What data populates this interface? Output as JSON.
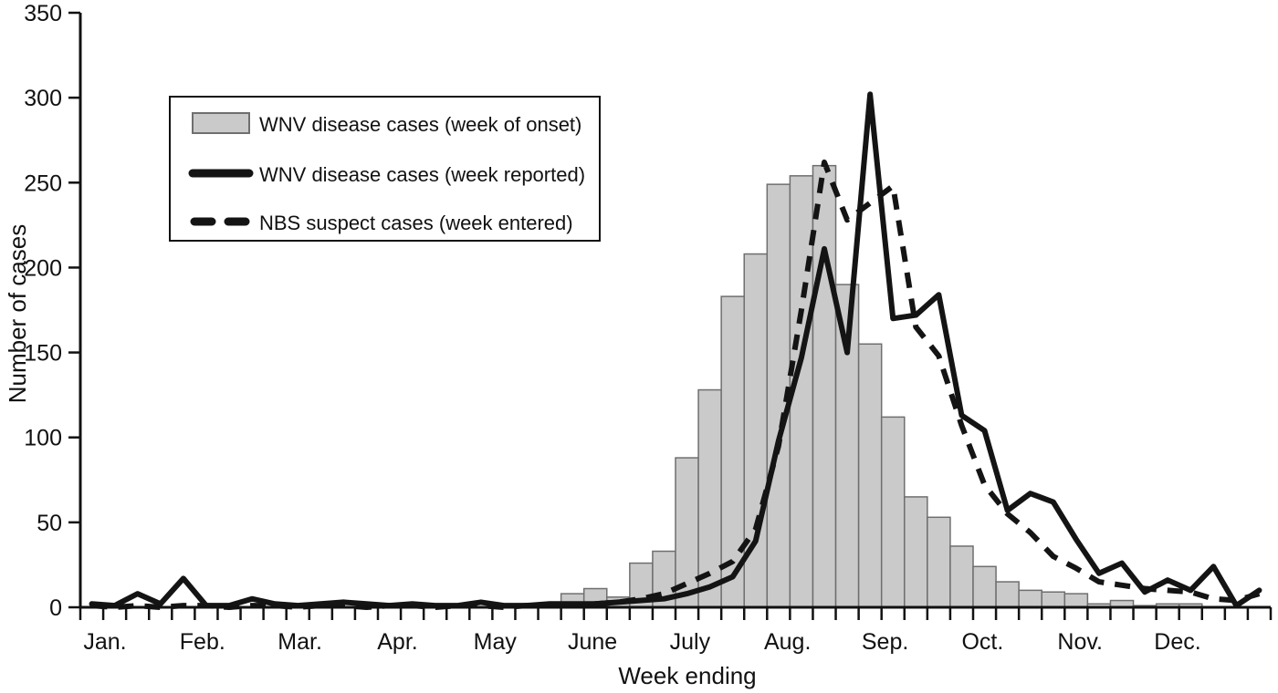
{
  "figure": {
    "y_axis_label": "Number of cases",
    "x_axis_label": "Week ending",
    "background_color": "#ffffff",
    "axis_color": "#111111"
  },
  "legend": {
    "position": "upper-left",
    "items": [
      {
        "label": "WNV disease cases (week of onset)",
        "swatch": "gray-bar"
      },
      {
        "label": "WNV disease cases (week reported)",
        "swatch": "solid-line"
      },
      {
        "label": "NBS suspect cases (week entered)",
        "swatch": "dashed-line"
      }
    ]
  },
  "chart_data": {
    "type": "bar+line combo",
    "title": "",
    "xlabel": "Week ending",
    "ylabel": "Number of cases",
    "x_unit": "week of year (52 weekly bins, Jan.-Dec.)",
    "months": [
      "Jan.",
      "Feb.",
      "Mar.",
      "Apr.",
      "May",
      "June",
      "July",
      "Aug.",
      "Sep.",
      "Oct.",
      "Nov.",
      "Dec."
    ],
    "y_ticks": [
      0,
      50,
      100,
      150,
      200,
      250,
      300,
      350
    ],
    "ylim": [
      0,
      350
    ],
    "grid": "off",
    "legend_position": "upper-left",
    "series": [
      {
        "name": "WNV disease cases (week of onset)",
        "type": "bar",
        "fill": "#cacaca",
        "stroke": "#6f6f6f",
        "values": [
          0,
          0,
          0,
          0,
          0,
          0,
          0,
          0,
          0,
          0,
          0,
          0,
          0,
          0,
          0,
          0,
          0,
          0,
          0,
          0,
          0,
          8,
          11,
          6,
          26,
          33,
          88,
          128,
          183,
          208,
          249,
          254,
          260,
          190,
          155,
          112,
          65,
          53,
          36,
          24,
          15,
          10,
          9,
          8,
          2,
          4,
          1,
          2,
          2,
          0,
          0,
          0
        ]
      },
      {
        "name": "WNV disease cases (week reported)",
        "type": "line",
        "style": "solid",
        "color": "#141414",
        "values": [
          2,
          1,
          8,
          2,
          17,
          1,
          1,
          5,
          2,
          1,
          2,
          3,
          2,
          1,
          2,
          1,
          1,
          3,
          1,
          1,
          2,
          2,
          2,
          3,
          4,
          5,
          8,
          12,
          18,
          39,
          98,
          147,
          211,
          150,
          302,
          170,
          172,
          184,
          113,
          104,
          57,
          67,
          62,
          40,
          20,
          26,
          9,
          16,
          10,
          24,
          1,
          10
        ]
      },
      {
        "name": "NBS suspect cases (week entered)",
        "type": "line",
        "style": "dashed",
        "color": "#141414",
        "values": [
          1,
          0,
          1,
          0,
          1,
          1,
          0,
          1,
          1,
          0,
          1,
          1,
          0,
          1,
          1,
          0,
          1,
          1,
          0,
          1,
          1,
          1,
          2,
          3,
          5,
          8,
          14,
          20,
          27,
          46,
          95,
          175,
          262,
          228,
          238,
          248,
          165,
          148,
          107,
          72,
          55,
          44,
          30,
          23,
          15,
          13,
          11,
          10,
          9,
          5,
          4,
          8
        ]
      }
    ]
  }
}
